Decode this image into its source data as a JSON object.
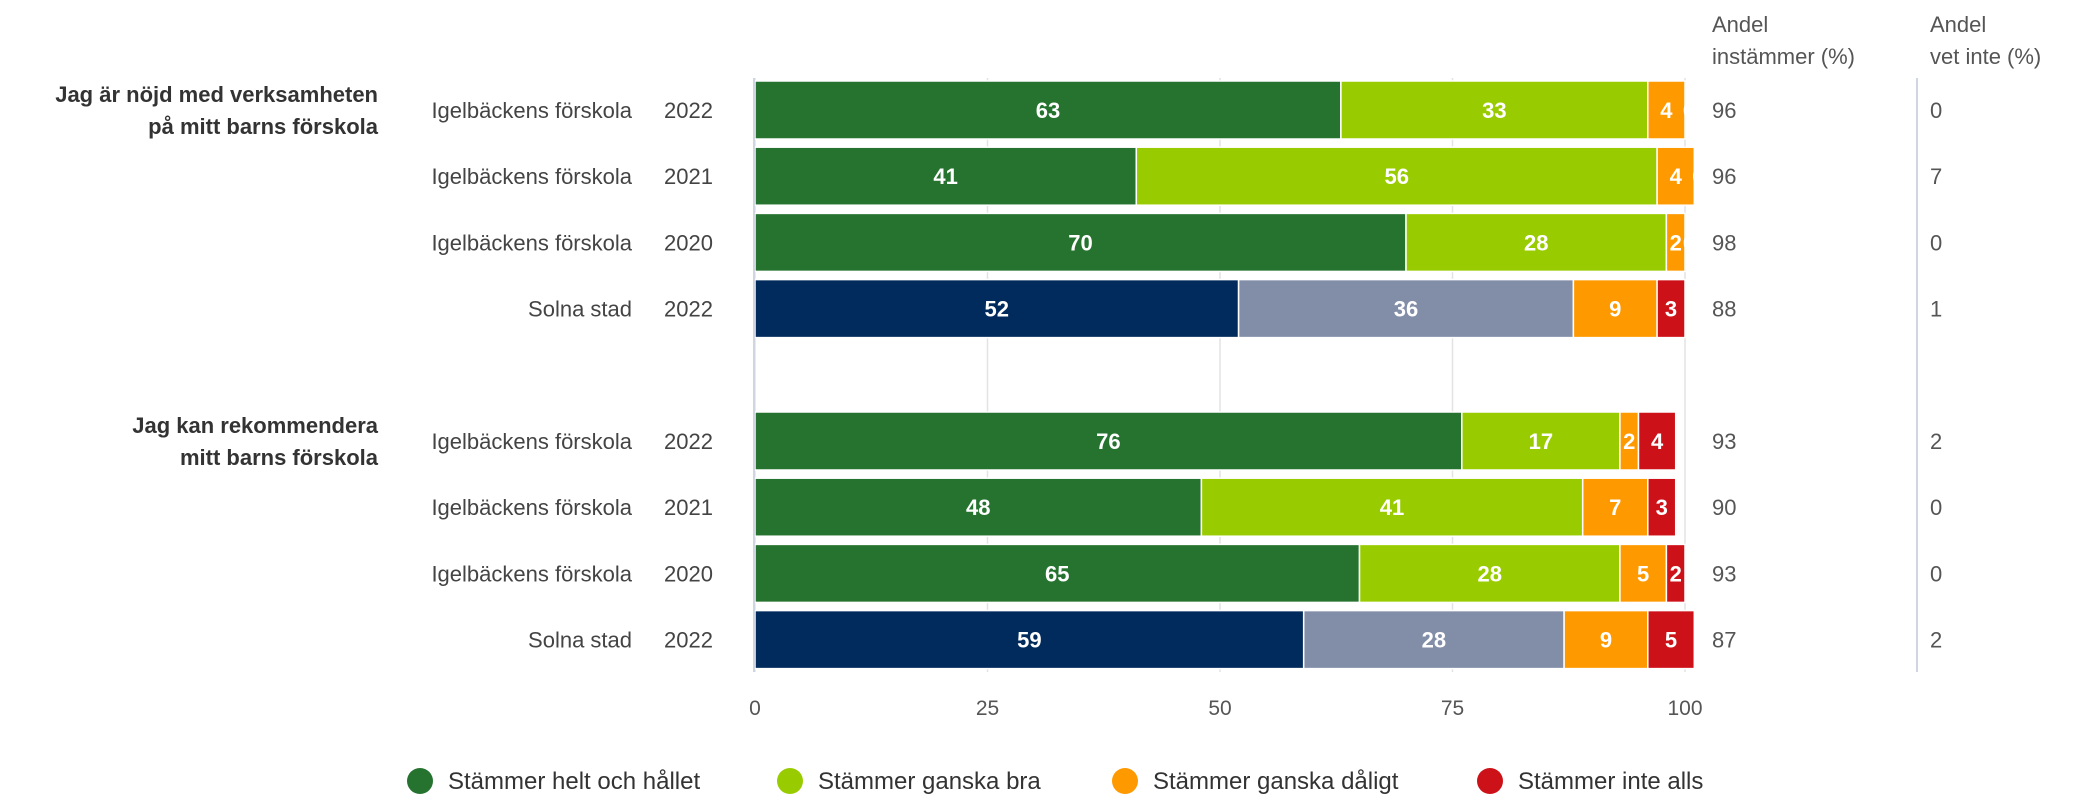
{
  "chart_data": {
    "type": "bar",
    "orientation": "horizontal-stacked",
    "xlim": [
      0,
      100
    ],
    "xticks": [
      "0",
      "25",
      "50",
      "75",
      "100"
    ],
    "grid": true,
    "legend_position": "bottom",
    "legend": [
      {
        "name": "Stämmer helt och hållet",
        "color": "#267330"
      },
      {
        "name": "Stämmer ganska bra",
        "color": "#99CC00"
      },
      {
        "name": "Stämmer ganska dåligt",
        "color": "#FF9900"
      },
      {
        "name": "Stämmer inte alls",
        "color": "#CC1118"
      }
    ],
    "comparison_colors": {
      "positive": "#002B5C",
      "neutral": "#828DA7"
    },
    "extra_columns": [
      {
        "header": [
          "Andel",
          "instämmer (%)"
        ]
      },
      {
        "header": [
          "Andel",
          "vet inte (%)"
        ]
      }
    ],
    "groups": [
      {
        "question": [
          "Jag är nöjd med verksamheten",
          "på mitt barns förskola"
        ],
        "rows": [
          {
            "unit": "Igelbäckens förskola",
            "year": "2022",
            "values": [
              63,
              33,
              4,
              0
            ],
            "instammer": "96",
            "vet_inte": "0",
            "comparison": false
          },
          {
            "unit": "Igelbäckens förskola",
            "year": "2021",
            "values": [
              41,
              56,
              4,
              0
            ],
            "instammer": "96",
            "vet_inte": "7",
            "comparison": false
          },
          {
            "unit": "Igelbäckens förskola",
            "year": "2020",
            "values": [
              70,
              28,
              2,
              0
            ],
            "instammer": "98",
            "vet_inte": "0",
            "comparison": false
          },
          {
            "unit": "Solna stad",
            "year": "2022",
            "values": [
              52,
              36,
              9,
              3
            ],
            "instammer": "88",
            "vet_inte": "1",
            "comparison": true
          }
        ]
      },
      {
        "question": [
          "Jag kan rekommendera",
          "mitt barns förskola"
        ],
        "rows": [
          {
            "unit": "Igelbäckens förskola",
            "year": "2022",
            "values": [
              76,
              17,
              2,
              4
            ],
            "instammer": "93",
            "vet_inte": "2",
            "comparison": false
          },
          {
            "unit": "Igelbäckens förskola",
            "year": "2021",
            "values": [
              48,
              41,
              7,
              3
            ],
            "instammer": "90",
            "vet_inte": "0",
            "comparison": false
          },
          {
            "unit": "Igelbäckens förskola",
            "year": "2020",
            "values": [
              65,
              28,
              5,
              2
            ],
            "instammer": "93",
            "vet_inte": "0",
            "comparison": false
          },
          {
            "unit": "Solna stad",
            "year": "2022",
            "values": [
              59,
              28,
              9,
              5
            ],
            "instammer": "87",
            "vet_inte": "2",
            "comparison": true
          }
        ]
      }
    ]
  }
}
